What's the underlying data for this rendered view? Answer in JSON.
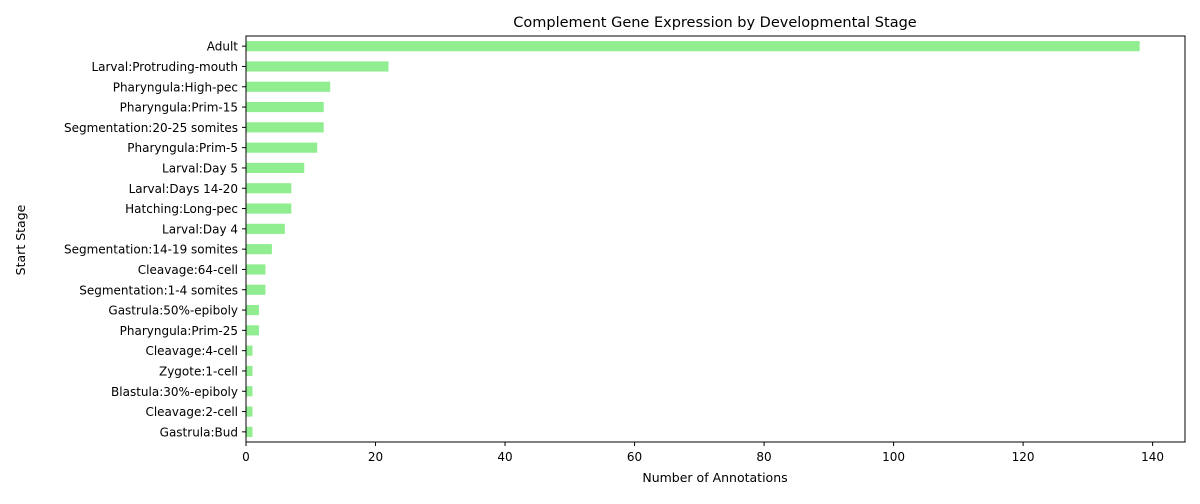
{
  "chart_data": {
    "type": "bar",
    "orientation": "horizontal",
    "title": "Complement Gene Expression by Developmental Stage",
    "xlabel": "Number of Annotations",
    "ylabel": "Start Stage",
    "xlim": [
      0,
      145
    ],
    "xticks": [
      0,
      20,
      40,
      60,
      80,
      100,
      120,
      140
    ],
    "bar_color": "#90ee90",
    "grid": false,
    "categories": [
      "Adult",
      "Larval:Protruding-mouth",
      "Pharyngula:High-pec",
      "Pharyngula:Prim-15",
      "Segmentation:20-25 somites",
      "Pharyngula:Prim-5",
      "Larval:Day 5",
      "Larval:Days 14-20",
      "Hatching:Long-pec",
      "Larval:Day 4",
      "Segmentation:14-19 somites",
      "Cleavage:64-cell",
      "Segmentation:1-4 somites",
      "Gastrula:50%-epiboly",
      "Pharyngula:Prim-25",
      "Cleavage:4-cell",
      "Zygote:1-cell",
      "Blastula:30%-epiboly",
      "Cleavage:2-cell",
      "Gastrula:Bud"
    ],
    "values": [
      138,
      22,
      13,
      12,
      12,
      11,
      9,
      7,
      7,
      6,
      4,
      3,
      3,
      2,
      2,
      1,
      1,
      1,
      1,
      1
    ]
  }
}
